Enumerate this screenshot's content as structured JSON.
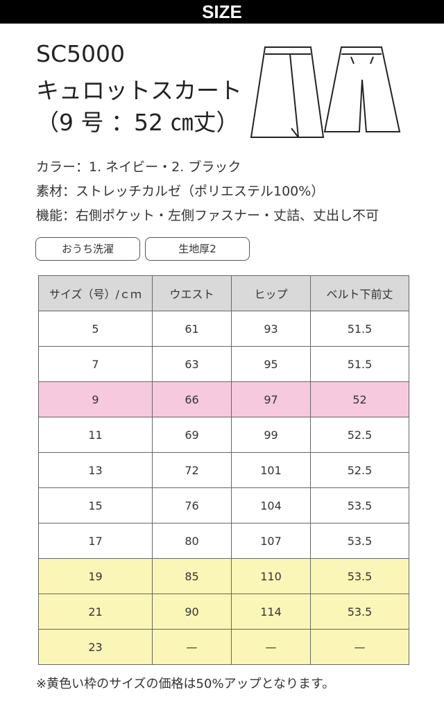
{
  "header": {
    "title": "SIZE"
  },
  "product": {
    "code": "SC5000",
    "name": "キュロットスカート",
    "spec": "（9 号 ：52 ㎝丈）"
  },
  "details": [
    "カラー：1. ネイビー・2. ブラック",
    "素材：ストレッチカルゼ（ポリエステル100%）",
    "機能：右側ポケット・左側ファスナー・丈詰、丈出し不可"
  ],
  "tags": [
    "おうち洗濯",
    "生地厚2"
  ],
  "table": {
    "header_fill": "#d9d9d9",
    "columns": [
      "サイズ（号）/ｃｍ",
      "ウエスト",
      "ヒップ",
      "ベルト下前丈"
    ],
    "rows": [
      {
        "cells": [
          "5",
          "61",
          "93",
          "51.5"
        ]
      },
      {
        "cells": [
          "7",
          "63",
          "95",
          "51.5"
        ]
      },
      {
        "cells": [
          "9",
          "66",
          "97",
          "52"
        ],
        "fill": "#f6c9de"
      },
      {
        "cells": [
          "11",
          "69",
          "99",
          "52.5"
        ]
      },
      {
        "cells": [
          "13",
          "72",
          "101",
          "52.5"
        ]
      },
      {
        "cells": [
          "15",
          "76",
          "104",
          "53.5"
        ]
      },
      {
        "cells": [
          "17",
          "80",
          "107",
          "53.5"
        ]
      },
      {
        "cells": [
          "19",
          "85",
          "110",
          "53.5"
        ],
        "fill": "#faf6b8"
      },
      {
        "cells": [
          "21",
          "90",
          "114",
          "53.5"
        ],
        "fill": "#faf6b8"
      },
      {
        "cells": [
          "23",
          "—",
          "—",
          "—"
        ],
        "fill": "#faf6b8"
      }
    ]
  },
  "footnote": "※黄色い枠のサイズの価格は50%アップとなります。"
}
